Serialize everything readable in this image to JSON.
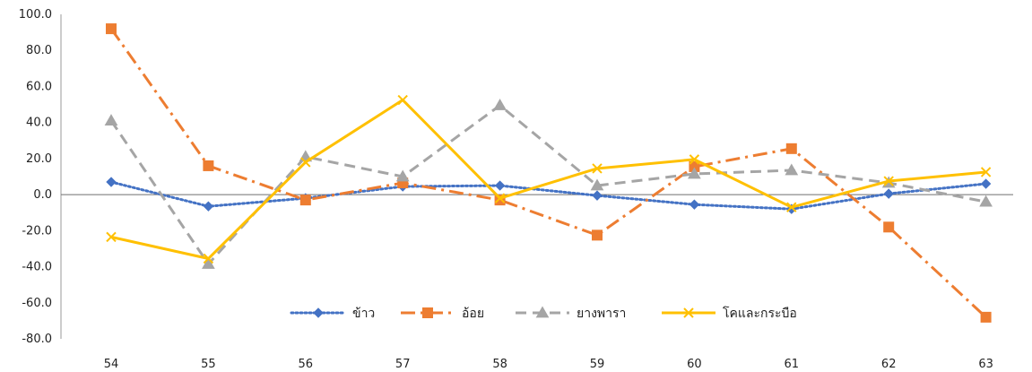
{
  "chart_data": {
    "type": "line",
    "categories": [
      "54",
      "55",
      "56",
      "57",
      "58",
      "59",
      "60",
      "61",
      "62",
      "63"
    ],
    "ylim": [
      -80,
      100
    ],
    "y_ticks": [
      100,
      80,
      60,
      40,
      20,
      0,
      -20,
      -40,
      -60,
      -80
    ],
    "y_tick_labels": [
      "100.0",
      "80.0",
      "60.0",
      "40.0",
      "20.0",
      "0.0",
      "-20.0",
      "-40.0",
      "-60.0",
      "-80.0"
    ],
    "grid": false,
    "legend_position": "bottom-center (inside plot)",
    "series": [
      {
        "name": "ข้าว",
        "color": "#4472C4",
        "dash": "dotted",
        "marker": "diamond",
        "values": [
          7.0,
          -6.5,
          -2.0,
          4.5,
          5.0,
          -0.5,
          -5.5,
          -8.0,
          0.5,
          6.0
        ]
      },
      {
        "name": "อ้อย",
        "color": "#ED7D31",
        "dash": "dash-dot",
        "marker": "square",
        "values": [
          92.0,
          16.0,
          -3.0,
          6.5,
          -3.0,
          -22.5,
          15.5,
          25.5,
          -18.0,
          -68.0
        ]
      },
      {
        "name": "ยางพารา",
        "color": "#A5A5A5",
        "dash": "dashed",
        "marker": "triangle",
        "values": [
          41.0,
          -38.5,
          21.0,
          10.0,
          49.5,
          5.0,
          11.5,
          13.5,
          6.5,
          -4.0
        ]
      },
      {
        "name": "โคและกระบือ",
        "color": "#FFC000",
        "dash": "solid",
        "marker": "x",
        "values": [
          -23.5,
          -35.5,
          18.0,
          52.5,
          -2.0,
          14.5,
          19.5,
          -7.0,
          7.5,
          12.5
        ]
      }
    ]
  }
}
